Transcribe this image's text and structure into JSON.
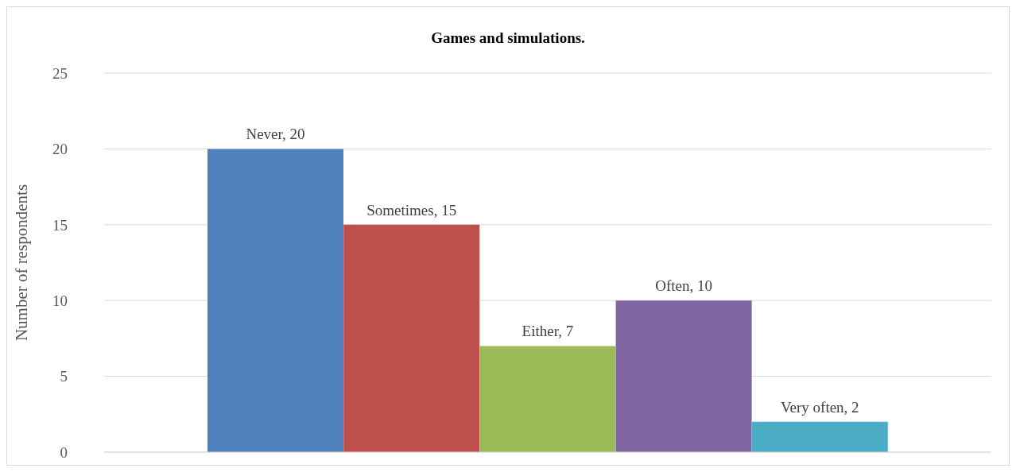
{
  "chart_data": {
    "type": "bar",
    "title": "Games and simulations.",
    "ylabel": "Number of respondents",
    "categories": [
      null,
      null,
      null,
      null,
      null
    ],
    "values": [
      20,
      15,
      7,
      10,
      2
    ],
    "colors": [
      "#4f81bd",
      "#c0504d",
      "#9bbb59",
      "#8064a2",
      "#4bacc6"
    ],
    "value_labels": [
      "Never, 20",
      "Sometimes, 15",
      "Either, 7",
      "Often, 10",
      "Very often, 2"
    ],
    "ylim": [
      0,
      25
    ],
    "yticks": [
      0,
      5,
      10,
      15,
      20,
      25
    ],
    "grid": "y",
    "tick_labels": "y"
  }
}
